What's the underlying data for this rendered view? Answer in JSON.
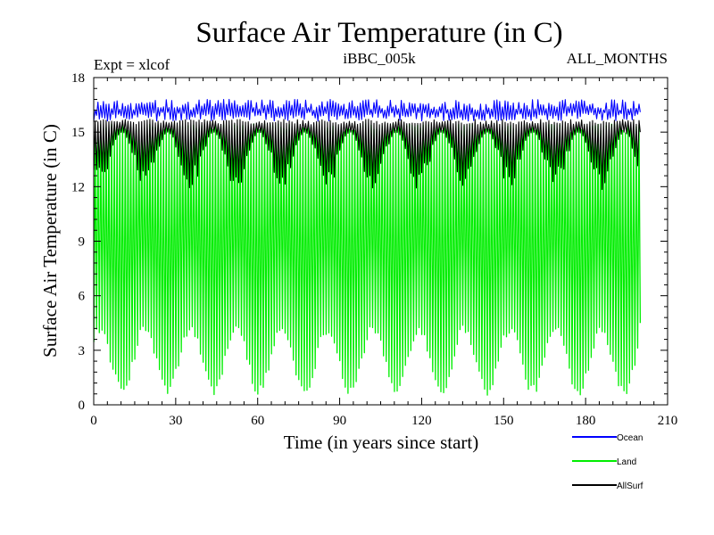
{
  "chart_data": {
    "type": "line",
    "title": "Surface Air Temperature (in C)",
    "experiment_label": "Expt = xlcof",
    "run_label": "iBBC_005k",
    "season_label": "ALL_MONTHS",
    "xlabel": "Time (in years since start)",
    "ylabel": "Surface Air Temperature (in C)",
    "xlim": [
      0,
      210
    ],
    "ylim": [
      0,
      18
    ],
    "x_ticks": [
      0,
      30,
      60,
      90,
      120,
      150,
      180,
      210
    ],
    "y_ticks": [
      0,
      3,
      6,
      9,
      12,
      15,
      18
    ],
    "x_tick_labels": [
      "0",
      "30",
      "60",
      "90",
      "120",
      "150",
      "180",
      "210"
    ],
    "y_tick_labels": [
      "0",
      "3",
      "6",
      "9",
      "12",
      "15",
      "18"
    ],
    "x_minor_step": 5,
    "y_minor_step": 0.6,
    "data_x_range": [
      0,
      200
    ],
    "oscillation_period_years": 1,
    "long_cycle_period_years": 16.7,
    "series": [
      {
        "name": "Ocean",
        "color": "#0000ff",
        "summer_max_range": [
          16.2,
          16.8
        ],
        "winter_min_range": [
          15.6,
          16.1
        ]
      },
      {
        "name": "Land",
        "color": "#00ee00",
        "summer_max_range": [
          14.6,
          15.6
        ],
        "winter_min_range": [
          0.5,
          4.5
        ]
      },
      {
        "name": "AllSurf",
        "color": "#000000",
        "summer_max_range": [
          15.2,
          15.8
        ],
        "winter_min_range": [
          11.8,
          15.0
        ]
      }
    ],
    "legend_position": "bottom-right"
  }
}
